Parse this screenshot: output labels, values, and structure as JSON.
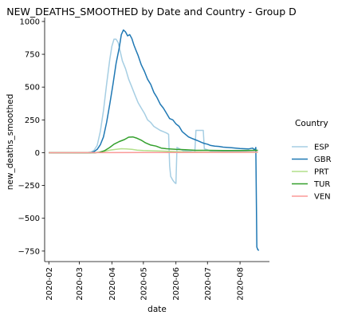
{
  "chart_data": {
    "type": "line",
    "title": "NEW_DEATHS_SMOOTHED by Date and Country - Group D",
    "xlabel": "date",
    "ylabel": "new_deaths_smoothed",
    "x_range": [
      "2020-01-28",
      "2020-08-29"
    ],
    "ylim": [
      -830,
      1030
    ],
    "x_tick_labels": [
      "2020-02",
      "2020-03",
      "2020-04",
      "2020-05",
      "2020-06",
      "2020-07",
      "2020-08"
    ],
    "x_tick_dates": [
      "2020-02-01",
      "2020-03-01",
      "2020-04-01",
      "2020-05-01",
      "2020-06-01",
      "2020-07-01",
      "2020-08-01"
    ],
    "y_ticks": [
      1000,
      750,
      500,
      250,
      0,
      -250,
      -500,
      -750
    ],
    "y_tick_labels": [
      "1000",
      "750",
      "500",
      "250",
      "0",
      "−250",
      "−500",
      "−750"
    ],
    "grid": false,
    "legend": {
      "title": "Country",
      "placement": "right"
    },
    "series": [
      {
        "name": "ESP",
        "color": "#a6cee3",
        "points": [
          [
            "2020-02-01",
            0
          ],
          [
            "2020-03-08",
            0
          ],
          [
            "2020-03-12",
            5
          ],
          [
            "2020-03-15",
            18
          ],
          [
            "2020-03-18",
            55
          ],
          [
            "2020-03-21",
            160
          ],
          [
            "2020-03-24",
            320
          ],
          [
            "2020-03-27",
            520
          ],
          [
            "2020-03-30",
            710
          ],
          [
            "2020-04-01",
            810
          ],
          [
            "2020-04-03",
            865
          ],
          [
            "2020-04-05",
            865
          ],
          [
            "2020-04-07",
            840
          ],
          [
            "2020-04-09",
            770
          ],
          [
            "2020-04-11",
            700
          ],
          [
            "2020-04-14",
            640
          ],
          [
            "2020-04-17",
            560
          ],
          [
            "2020-04-20",
            500
          ],
          [
            "2020-04-23",
            440
          ],
          [
            "2020-04-26",
            380
          ],
          [
            "2020-04-29",
            340
          ],
          [
            "2020-05-02",
            300
          ],
          [
            "2020-05-05",
            250
          ],
          [
            "2020-05-08",
            230
          ],
          [
            "2020-05-11",
            200
          ],
          [
            "2020-05-14",
            185
          ],
          [
            "2020-05-17",
            170
          ],
          [
            "2020-05-20",
            160
          ],
          [
            "2020-05-23",
            150
          ],
          [
            "2020-05-25",
            140
          ],
          [
            "2020-05-26",
            -100
          ],
          [
            "2020-05-27",
            -180
          ],
          [
            "2020-05-29",
            -210
          ],
          [
            "2020-05-31",
            -230
          ],
          [
            "2020-06-01",
            -235
          ],
          [
            "2020-06-02",
            40
          ],
          [
            "2020-06-08",
            15
          ],
          [
            "2020-06-15",
            10
          ],
          [
            "2020-06-19",
            5
          ],
          [
            "2020-06-20",
            170
          ],
          [
            "2020-06-27",
            170
          ],
          [
            "2020-06-28",
            30
          ],
          [
            "2020-07-05",
            10
          ],
          [
            "2020-07-15",
            8
          ],
          [
            "2020-07-31",
            10
          ],
          [
            "2020-08-10",
            15
          ],
          [
            "2020-08-18",
            18
          ]
        ]
      },
      {
        "name": "GBR",
        "color": "#1f78b4",
        "points": [
          [
            "2020-02-01",
            0
          ],
          [
            "2020-03-12",
            0
          ],
          [
            "2020-03-15",
            8
          ],
          [
            "2020-03-18",
            25
          ],
          [
            "2020-03-21",
            60
          ],
          [
            "2020-03-24",
            120
          ],
          [
            "2020-03-27",
            230
          ],
          [
            "2020-03-30",
            370
          ],
          [
            "2020-04-02",
            520
          ],
          [
            "2020-04-05",
            680
          ],
          [
            "2020-04-08",
            800
          ],
          [
            "2020-04-10",
            900
          ],
          [
            "2020-04-12",
            935
          ],
          [
            "2020-04-14",
            920
          ],
          [
            "2020-04-16",
            890
          ],
          [
            "2020-04-18",
            900
          ],
          [
            "2020-04-20",
            870
          ],
          [
            "2020-04-22",
            820
          ],
          [
            "2020-04-24",
            780
          ],
          [
            "2020-04-26",
            740
          ],
          [
            "2020-04-29",
            670
          ],
          [
            "2020-05-02",
            620
          ],
          [
            "2020-05-05",
            560
          ],
          [
            "2020-05-08",
            520
          ],
          [
            "2020-05-11",
            460
          ],
          [
            "2020-05-14",
            420
          ],
          [
            "2020-05-17",
            370
          ],
          [
            "2020-05-20",
            340
          ],
          [
            "2020-05-23",
            300
          ],
          [
            "2020-05-26",
            260
          ],
          [
            "2020-05-29",
            250
          ],
          [
            "2020-06-01",
            220
          ],
          [
            "2020-06-04",
            200
          ],
          [
            "2020-06-07",
            160
          ],
          [
            "2020-06-10",
            140
          ],
          [
            "2020-06-13",
            120
          ],
          [
            "2020-06-16",
            110
          ],
          [
            "2020-06-19",
            100
          ],
          [
            "2020-06-22",
            90
          ],
          [
            "2020-06-25",
            80
          ],
          [
            "2020-06-28",
            70
          ],
          [
            "2020-07-01",
            65
          ],
          [
            "2020-07-04",
            55
          ],
          [
            "2020-07-08",
            50
          ],
          [
            "2020-07-12",
            48
          ],
          [
            "2020-07-16",
            42
          ],
          [
            "2020-07-20",
            40
          ],
          [
            "2020-07-24",
            38
          ],
          [
            "2020-07-28",
            35
          ],
          [
            "2020-08-01",
            32
          ],
          [
            "2020-08-05",
            30
          ],
          [
            "2020-08-09",
            28
          ],
          [
            "2020-08-13",
            35
          ],
          [
            "2020-08-15",
            20
          ],
          [
            "2020-08-16",
            40
          ],
          [
            "2020-08-17",
            -720
          ],
          [
            "2020-08-18",
            -740
          ],
          [
            "2020-08-19",
            -745
          ]
        ]
      },
      {
        "name": "PRT",
        "color": "#b2df8a",
        "points": [
          [
            "2020-02-01",
            0
          ],
          [
            "2020-03-16",
            0
          ],
          [
            "2020-03-20",
            3
          ],
          [
            "2020-03-25",
            10
          ],
          [
            "2020-03-30",
            20
          ],
          [
            "2020-04-05",
            25
          ],
          [
            "2020-04-10",
            30
          ],
          [
            "2020-04-15",
            28
          ],
          [
            "2020-04-20",
            25
          ],
          [
            "2020-04-25",
            20
          ],
          [
            "2020-05-01",
            16
          ],
          [
            "2020-05-10",
            14
          ],
          [
            "2020-05-20",
            12
          ],
          [
            "2020-06-01",
            8
          ],
          [
            "2020-06-15",
            5
          ],
          [
            "2020-07-01",
            4
          ],
          [
            "2020-07-15",
            3
          ],
          [
            "2020-08-01",
            3
          ],
          [
            "2020-08-18",
            3
          ]
        ]
      },
      {
        "name": "TUR",
        "color": "#33a02c",
        "points": [
          [
            "2020-02-01",
            0
          ],
          [
            "2020-03-16",
            0
          ],
          [
            "2020-03-20",
            3
          ],
          [
            "2020-03-25",
            15
          ],
          [
            "2020-03-30",
            40
          ],
          [
            "2020-04-03",
            65
          ],
          [
            "2020-04-08",
            85
          ],
          [
            "2020-04-13",
            100
          ],
          [
            "2020-04-17",
            118
          ],
          [
            "2020-04-21",
            120
          ],
          [
            "2020-04-25",
            110
          ],
          [
            "2020-04-29",
            95
          ],
          [
            "2020-05-03",
            75
          ],
          [
            "2020-05-08",
            58
          ],
          [
            "2020-05-13",
            50
          ],
          [
            "2020-05-18",
            35
          ],
          [
            "2020-05-23",
            30
          ],
          [
            "2020-06-01",
            25
          ],
          [
            "2020-06-10",
            22
          ],
          [
            "2020-06-20",
            18
          ],
          [
            "2020-07-01",
            18
          ],
          [
            "2020-07-15",
            17
          ],
          [
            "2020-08-01",
            17
          ],
          [
            "2020-08-18",
            18
          ]
        ]
      },
      {
        "name": "VEN",
        "color": "#fb9a99",
        "points": [
          [
            "2020-02-01",
            0
          ],
          [
            "2020-05-01",
            1
          ],
          [
            "2020-06-01",
            1
          ],
          [
            "2020-07-01",
            2
          ],
          [
            "2020-08-01",
            3
          ],
          [
            "2020-08-18",
            4
          ]
        ]
      }
    ]
  }
}
